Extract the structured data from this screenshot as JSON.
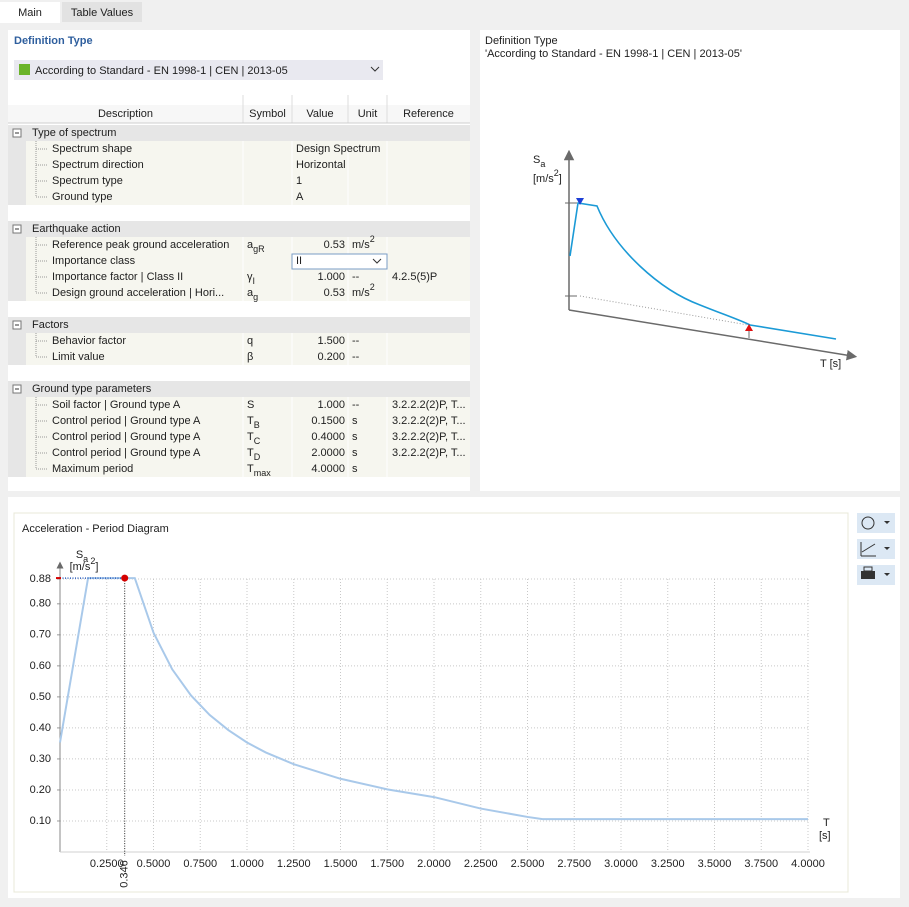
{
  "tabs": [
    "Main",
    "Table Values"
  ],
  "definition_type": {
    "label": "Definition Type",
    "value": "According to Standard - EN 1998-1 | CEN | 2013-05"
  },
  "table": {
    "headers": [
      "Description",
      "Symbol",
      "Value",
      "Unit",
      "Reference"
    ],
    "groups": [
      {
        "title": "Type of spectrum",
        "rows": [
          {
            "description": "Spectrum shape",
            "value": "Design Spectrum"
          },
          {
            "description": "Spectrum direction",
            "value": "Horizontal"
          },
          {
            "description": "Spectrum type",
            "value": "1"
          },
          {
            "description": "Ground type",
            "value": "A"
          }
        ]
      },
      {
        "title": "Earthquake action",
        "rows": [
          {
            "description": "Reference peak ground acceleration",
            "symbol": {
              "base": "a",
              "sub": "gR"
            },
            "value": "0.53",
            "unit": {
              "base": "m/s",
              "sup": "2"
            }
          },
          {
            "description": "Importance class",
            "value": "II",
            "dropdown": true
          },
          {
            "description": "Importance factor | Class II",
            "symbol": {
              "base": "γ",
              "sub": "I"
            },
            "value": "1.000",
            "unit": {
              "base": "--"
            },
            "reference": "4.2.5(5)P"
          },
          {
            "description": "Design ground acceleration | Hori...",
            "symbol": {
              "base": "a",
              "sub": "g"
            },
            "value": "0.53",
            "unit": {
              "base": "m/s",
              "sup": "2"
            }
          }
        ]
      },
      {
        "title": "Factors",
        "rows": [
          {
            "description": "Behavior factor",
            "symbol": {
              "base": "q"
            },
            "value": "1.500",
            "unit": {
              "base": "--"
            }
          },
          {
            "description": "Limit value",
            "symbol": {
              "base": "β"
            },
            "value": "0.200",
            "unit": {
              "base": "--"
            }
          }
        ]
      },
      {
        "title": "Ground type parameters",
        "rows": [
          {
            "description": "Soil factor | Ground type A",
            "symbol": {
              "base": "S"
            },
            "value": "1.000",
            "unit": {
              "base": "--"
            },
            "reference": "3.2.2.2(2)P, T..."
          },
          {
            "description": "Control period | Ground type A",
            "symbol": {
              "base": "T",
              "sub": "B"
            },
            "value": "0.1500",
            "unit": {
              "base": "s"
            },
            "reference": "3.2.2.2(2)P, T..."
          },
          {
            "description": "Control period | Ground type A",
            "symbol": {
              "base": "T",
              "sub": "C"
            },
            "value": "0.4000",
            "unit": {
              "base": "s"
            },
            "reference": "3.2.2.2(2)P, T..."
          },
          {
            "description": "Control period | Ground type A",
            "symbol": {
              "base": "T",
              "sub": "D"
            },
            "value": "2.0000",
            "unit": {
              "base": "s"
            },
            "reference": "3.2.2.2(2)P, T..."
          },
          {
            "description": "Maximum period",
            "symbol": {
              "base": "T",
              "sub": "max"
            },
            "value": "4.0000",
            "unit": {
              "base": "s"
            }
          }
        ]
      }
    ]
  },
  "preview": {
    "title": "Definition Type",
    "subtitle": "'According to Standard - EN 1998-1 | CEN | 2013-05'",
    "y_label": {
      "base": "S",
      "sub": "a"
    },
    "y_unit": {
      "base": "[m/s",
      "sup": "2",
      "tail": "]"
    },
    "x_label": {
      "base": "T",
      "tail": " [s]"
    }
  },
  "chart_data": {
    "type": "line",
    "title": "Acceleration - Period Diagram",
    "y_label": {
      "base": "S",
      "sub": "a"
    },
    "y_unit": {
      "base": "[m/s",
      "sup": "2",
      "tail": "]"
    },
    "x_label": "T",
    "x_unit": "[s]",
    "x": [
      0,
      0.15,
      0.4,
      0.5,
      0.6,
      0.7,
      0.8,
      0.9,
      1.0,
      1.1,
      1.25,
      1.5,
      1.75,
      2.0,
      2.25,
      2.5,
      2.58,
      4.0
    ],
    "values": [
      0.353,
      0.883,
      0.883,
      0.707,
      0.589,
      0.505,
      0.442,
      0.393,
      0.353,
      0.321,
      0.283,
      0.236,
      0.202,
      0.177,
      0.14,
      0.113,
      0.106,
      0.106
    ],
    "color": "#a9c9ea",
    "xlim": [
      0,
      4.0
    ],
    "ylim": [
      0,
      0.88
    ],
    "xticks": [
      {
        "value": 0.25,
        "label": "0.2500"
      },
      {
        "value": 0.5,
        "label": "0.5000"
      },
      {
        "value": 0.75,
        "label": "0.7500"
      },
      {
        "value": 1.0,
        "label": "1.0000"
      },
      {
        "value": 1.25,
        "label": "1.2500"
      },
      {
        "value": 1.5,
        "label": "1.5000"
      },
      {
        "value": 1.75,
        "label": "1.7500"
      },
      {
        "value": 2.0,
        "label": "2.0000"
      },
      {
        "value": 2.25,
        "label": "2.2500"
      },
      {
        "value": 2.5,
        "label": "2.5000"
      },
      {
        "value": 2.75,
        "label": "2.7500"
      },
      {
        "value": 3.0,
        "label": "3.0000"
      },
      {
        "value": 3.25,
        "label": "3.2500"
      },
      {
        "value": 3.5,
        "label": "3.5000"
      },
      {
        "value": 3.75,
        "label": "3.7500"
      },
      {
        "value": 4.0,
        "label": "4.0000"
      }
    ],
    "yticks": [
      {
        "value": 0.1,
        "label": "0.10"
      },
      {
        "value": 0.2,
        "label": "0.20"
      },
      {
        "value": 0.3,
        "label": "0.30"
      },
      {
        "value": 0.4,
        "label": "0.40"
      },
      {
        "value": 0.5,
        "label": "0.50"
      },
      {
        "value": 0.6,
        "label": "0.60"
      },
      {
        "value": 0.7,
        "label": "0.70"
      },
      {
        "value": 0.8,
        "label": "0.80"
      },
      {
        "value": 0.88,
        "label": "0.88"
      }
    ],
    "grid": true,
    "marker": {
      "x": 0.346,
      "y": 0.883,
      "color": "#d40000"
    }
  }
}
